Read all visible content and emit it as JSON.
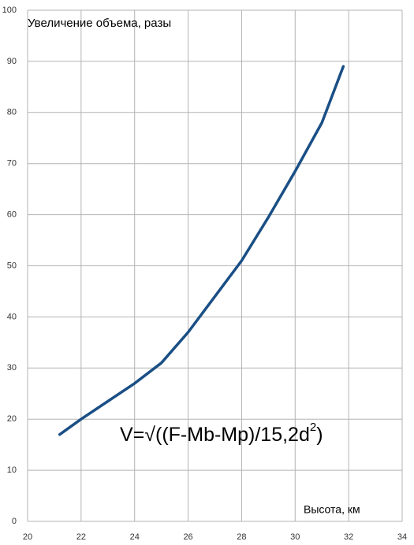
{
  "chart_data": {
    "type": "line",
    "title": "Увеличение объема, разы",
    "x_label": "Высота, км",
    "annotation": [
      "V=√((F-Mb-Mp)/15,2d",
      "2",
      ")"
    ],
    "x": [
      21.2,
      22,
      23,
      24,
      25,
      26,
      27,
      28,
      29,
      30,
      31,
      31.8
    ],
    "series": [
      {
        "color": "#1a4f85",
        "values": [
          17,
          20,
          23.5,
          27,
          31,
          37,
          44,
          51,
          59.5,
          68.5,
          78,
          89
        ]
      }
    ],
    "xlim": [
      20,
      34
    ],
    "xticks": [
      20,
      22,
      24,
      26,
      28,
      30,
      32,
      34
    ],
    "ylim": [
      0,
      100
    ],
    "yticks": [
      0,
      10,
      20,
      30,
      40,
      50,
      60,
      70,
      80,
      90,
      100
    ],
    "grid": true
  }
}
